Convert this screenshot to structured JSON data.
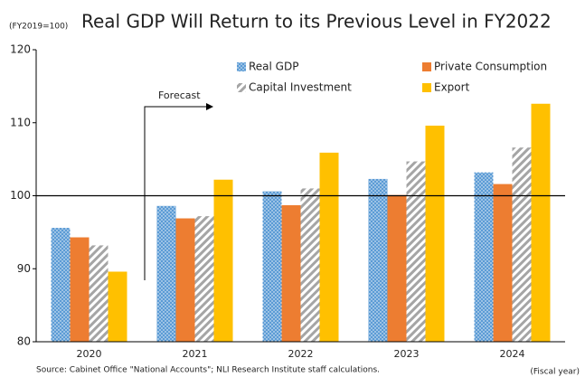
{
  "chart_data": {
    "type": "bar",
    "title": "Real GDP Will Return to its Previous Level in FY2022",
    "y_unit_label": "(FY2019=100)",
    "x_axis_label": "(Fiscal year)",
    "annotation": "Forecast",
    "source": "Source: Cabinet Office \"National Accounts\"; NLI Research Institute staff calculations.",
    "categories": [
      "2020",
      "2021",
      "2022",
      "2023",
      "2024"
    ],
    "series": [
      {
        "name": "Real GDP",
        "color": "#5b9bd5",
        "pattern": "dots",
        "values": [
          95.6,
          98.6,
          100.6,
          102.3,
          103.2
        ]
      },
      {
        "name": "Private Consumption",
        "color": "#ed7d31",
        "pattern": "solid",
        "values": [
          94.3,
          96.9,
          98.7,
          100.1,
          101.6
        ]
      },
      {
        "name": "Capital Investment",
        "color": "#a5a5a5",
        "pattern": "hatch",
        "values": [
          93.2,
          97.2,
          101.0,
          104.7,
          106.6
        ]
      },
      {
        "name": "Export",
        "color": "#ffc000",
        "pattern": "solid",
        "values": [
          89.6,
          102.2,
          105.9,
          109.6,
          112.6
        ]
      }
    ],
    "ylim": [
      80,
      120
    ],
    "yticks": [
      80,
      90,
      100,
      110,
      120
    ],
    "reference_line": 100,
    "legend": "top-right"
  }
}
